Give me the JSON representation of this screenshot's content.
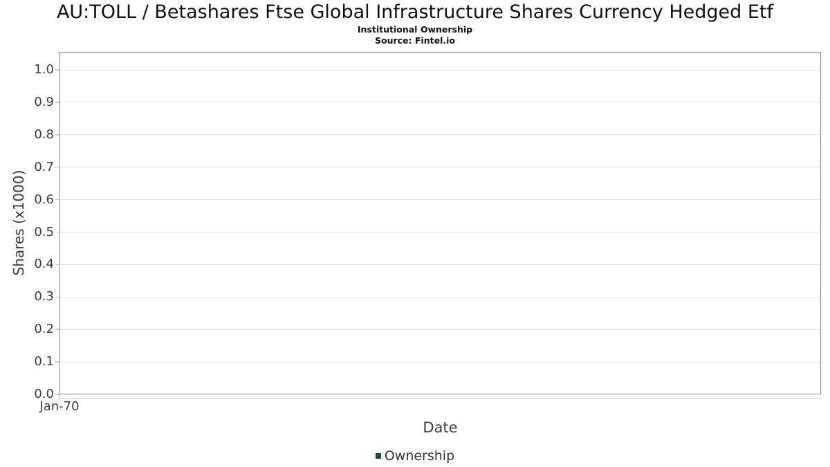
{
  "chart_data": {
    "type": "line",
    "title": "AU:TOLL / Betashares Ftse Global Infrastructure Shares Currency Hedged Etf",
    "subtitle": "Institutional Ownership",
    "source": "Source: Fintel.io",
    "xlabel": "Date",
    "ylabel": "Shares (x1000)",
    "x_ticks": [
      "Jan-70"
    ],
    "y_ticks": [
      "0.0",
      "0.1",
      "0.2",
      "0.3",
      "0.4",
      "0.5",
      "0.6",
      "0.7",
      "0.8",
      "0.9",
      "1.0"
    ],
    "ylim": [
      0.0,
      1.055
    ],
    "xlim_labels": [
      "Jan-70"
    ],
    "grid": "horizontal",
    "legend_position": "bottom-center",
    "series": [
      {
        "name": "Ownership",
        "color": "#1e4a2c",
        "x": [],
        "values": []
      }
    ],
    "colors": {
      "plot_border": "#848484",
      "gridline": "#e4e4e4",
      "tick_mark": "#c9c9c9",
      "axis_text": "#3c3c3c",
      "title_text": "#101010",
      "legend_text": "#333333",
      "legend_marker": "#1e4a2c"
    }
  }
}
